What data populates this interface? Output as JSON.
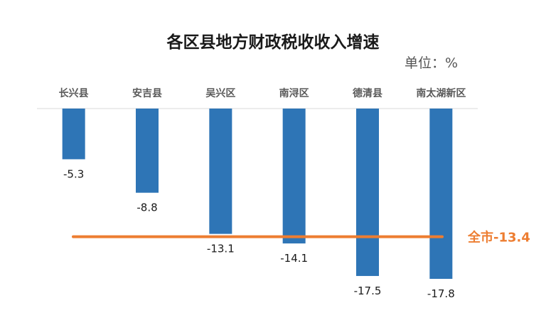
{
  "chart_data": {
    "type": "bar",
    "title": "各区县地方财政税收收入增速",
    "unit": "单位：%",
    "categories": [
      "长兴县",
      "安吉县",
      "吴兴区",
      "南浔区",
      "德清县",
      "南太湖新区"
    ],
    "series": [
      {
        "values": [
          -5.3,
          -8.8,
          -13.1,
          -14.1,
          -17.5,
          -17.8
        ]
      }
    ],
    "value_labels": [
      "-5.3",
      "-8.8",
      "-13.1",
      "-14.1",
      "-17.5",
      "-17.8"
    ],
    "reference_line": {
      "value": -13.4,
      "label": "全市-13.4"
    },
    "ylim": [
      -17.8,
      0
    ],
    "grid": false,
    "legend": "none",
    "colors": {
      "bar": "#2e75b6",
      "reference": "#ed7d31",
      "axis": "#d9d9d9"
    }
  }
}
